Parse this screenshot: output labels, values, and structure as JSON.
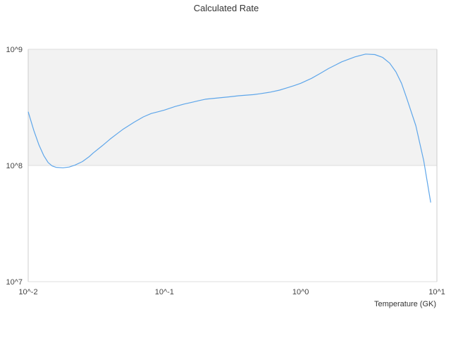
{
  "chart_data": {
    "type": "line",
    "title": "Calculated Rate",
    "xlabel": "Temperature (GK)",
    "ylabel": "",
    "x_scale": "log",
    "y_scale": "log",
    "xlim": [
      0.01,
      10
    ],
    "ylim": [
      10000000,
      1000000000
    ],
    "x_tick_labels": [
      "10^-2",
      "10^-1",
      "10^0",
      "10^1"
    ],
    "y_tick_labels": [
      "10^7",
      "10^8",
      "10^9"
    ],
    "x_ticks": [
      0.01,
      0.1,
      1,
      10
    ],
    "y_ticks": [
      10000000,
      100000000,
      1000000000
    ],
    "grid": true,
    "legend": "none",
    "colors": {
      "line": "#5ea6ea",
      "band": "#f2f2f2",
      "grid": "#dddddd",
      "axis": "#cccccc"
    },
    "series": [
      {
        "x": [
          0.01,
          0.011,
          0.012,
          0.013,
          0.014,
          0.015,
          0.016,
          0.018,
          0.02,
          0.022,
          0.025,
          0.028,
          0.03,
          0.035,
          0.04,
          0.045,
          0.05,
          0.06,
          0.07,
          0.08,
          0.09,
          0.1,
          0.12,
          0.14,
          0.16,
          0.18,
          0.2,
          0.25,
          0.3,
          0.35,
          0.4,
          0.45,
          0.5,
          0.6,
          0.7,
          0.8,
          0.9,
          1.0,
          1.2,
          1.4,
          1.6,
          1.8,
          2.0,
          2.5,
          3.0,
          3.5,
          4.0,
          4.5,
          5.0,
          5.5,
          6.0,
          7.0,
          8.0,
          9.0
        ],
        "y": [
          290000000,
          200000000,
          150000000,
          122000000,
          106000000,
          99000000,
          96500000,
          95500000,
          97000000,
          100500000,
          108000000,
          119000000,
          128000000,
          148000000,
          169000000,
          188000000,
          206000000,
          236000000,
          262000000,
          280000000,
          290000000,
          300000000,
          322000000,
          338000000,
          350000000,
          362000000,
          372000000,
          382000000,
          390000000,
          398000000,
          403000000,
          407000000,
          414000000,
          428000000,
          445000000,
          467000000,
          488000000,
          510000000,
          562000000,
          622000000,
          682000000,
          732000000,
          780000000,
          860000000,
          910000000,
          900000000,
          850000000,
          760000000,
          640000000,
          510000000,
          380000000,
          220000000,
          110000000,
          48000000
        ]
      }
    ]
  }
}
